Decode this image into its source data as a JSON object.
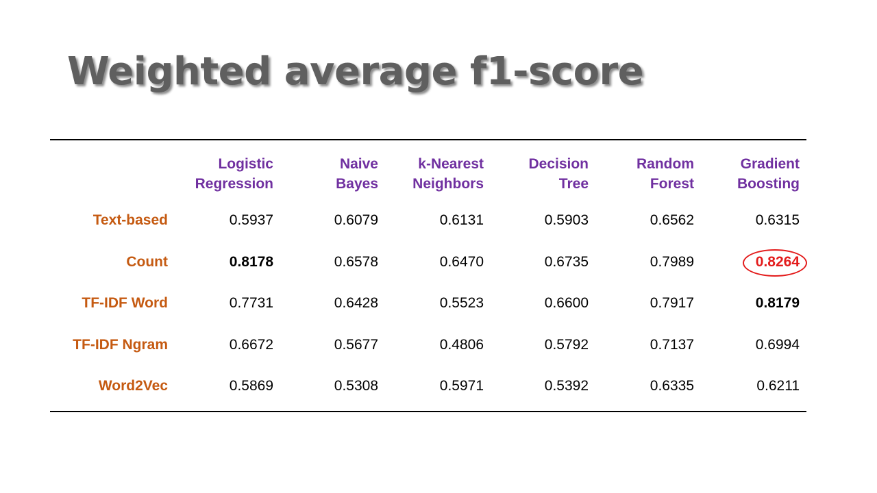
{
  "title": "Weighted average f1-score",
  "columns": [
    {
      "line1": "Logistic",
      "line2": "Regression"
    },
    {
      "line1": "Naive",
      "line2": "Bayes"
    },
    {
      "line1": "k-Nearest",
      "line2": "Neighbors"
    },
    {
      "line1": "Decision",
      "line2": "Tree"
    },
    {
      "line1": "Random",
      "line2": "Forest"
    },
    {
      "line1": "Gradient",
      "line2": "Boosting"
    }
  ],
  "rows": [
    {
      "label": "Text-based",
      "values": [
        "0.5937",
        "0.6079",
        "0.6131",
        "0.5903",
        "0.6562",
        "0.6315"
      ]
    },
    {
      "label": "Count",
      "values": [
        "0.8178",
        "0.6578",
        "0.6470",
        "0.6735",
        "0.7989",
        "0.8264"
      ]
    },
    {
      "label": "TF-IDF Word",
      "values": [
        "0.7731",
        "0.6428",
        "0.5523",
        "0.6600",
        "0.7917",
        "0.8179"
      ]
    },
    {
      "label": "TF-IDF Ngram",
      "values": [
        "0.6672",
        "0.5677",
        "0.4806",
        "0.5792",
        "0.7137",
        "0.6994"
      ]
    },
    {
      "label": "Word2Vec",
      "values": [
        "0.5869",
        "0.5308",
        "0.5971",
        "0.5392",
        "0.6335",
        "0.6211"
      ]
    }
  ],
  "emphasis": {
    "bold_cells": [
      [
        1,
        0
      ],
      [
        2,
        5
      ]
    ],
    "circled_cell": [
      1,
      5
    ]
  },
  "colors": {
    "title": "#5f5f5f",
    "column_header": "#7030a0",
    "row_label": "#c55a11",
    "highlight": "#e31b1b"
  }
}
